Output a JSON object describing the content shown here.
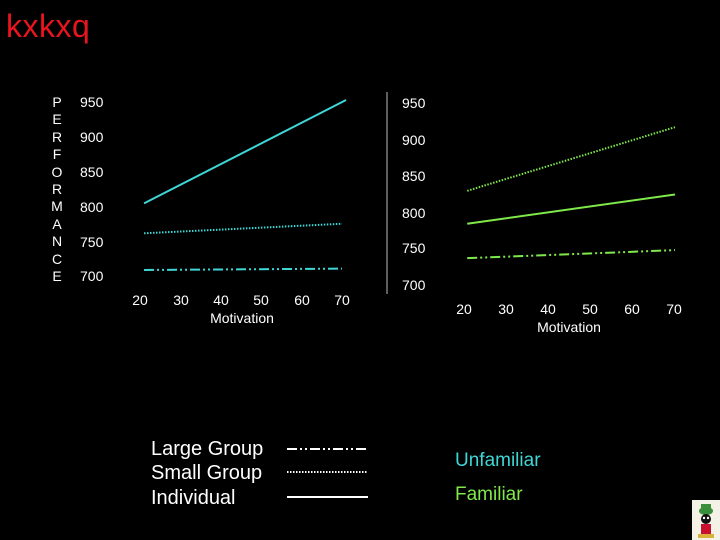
{
  "title": "kxkxq",
  "colors": {
    "title": "#e8141e",
    "unfamiliar": "#3fd6d6",
    "familiar": "#7fe84a",
    "text": "#ffffff"
  },
  "ylabel_letters": [
    "P",
    "E",
    "R",
    "F",
    "O",
    "R",
    "M",
    "A",
    "N",
    "C",
    "E"
  ],
  "chart_data": [
    {
      "type": "line",
      "name": "left-chart",
      "condition": "Unfamiliar",
      "color": "#3fd6d6",
      "x": [
        20,
        30,
        40,
        50,
        60,
        70
      ],
      "xticks": [
        "20",
        "30",
        "40",
        "50",
        "60",
        "70"
      ],
      "yticks": [
        "950",
        "900",
        "850",
        "800",
        "750",
        "700"
      ],
      "ytick_values": [
        950,
        900,
        850,
        800,
        750,
        700
      ],
      "xlabel": "Motivation",
      "ylabel": "PERFORMANCE",
      "xlim": [
        20,
        70
      ],
      "ylim": [
        700,
        950
      ],
      "series": [
        {
          "name": "Large Group",
          "style": "dashdot",
          "points": [
            [
              21,
              700
            ],
            [
              70,
              702
            ]
          ]
        },
        {
          "name": "Small Group",
          "style": "dotted",
          "points": [
            [
              21,
              754
            ],
            [
              70,
              768
            ]
          ]
        },
        {
          "name": "Individual",
          "style": "solid",
          "points": [
            [
              21,
              798
            ],
            [
              71,
              950
            ]
          ]
        }
      ]
    },
    {
      "type": "line",
      "name": "right-chart",
      "condition": "Familiar",
      "color": "#7fe84a",
      "x": [
        20,
        30,
        40,
        50,
        60,
        70
      ],
      "xticks": [
        "20",
        "30",
        "40",
        "50",
        "60",
        "70"
      ],
      "yticks": [
        "950",
        "900",
        "850",
        "800",
        "750",
        "700"
      ],
      "ytick_values": [
        950,
        900,
        850,
        800,
        750,
        700
      ],
      "xlabel": "Motivation",
      "ylabel": "",
      "xlim": [
        20,
        70
      ],
      "ylim": [
        700,
        950
      ],
      "series": [
        {
          "name": "Large Group",
          "style": "dashdot",
          "points": [
            [
              21,
              738
            ],
            [
              70,
              749
            ]
          ]
        },
        {
          "name": "Small Group",
          "style": "dotted",
          "points": [
            [
              21,
              830
            ],
            [
              70,
              917
            ]
          ]
        },
        {
          "name": "Individual",
          "style": "solid",
          "points": [
            [
              21,
              785
            ],
            [
              70,
              825
            ]
          ]
        }
      ]
    }
  ],
  "legend": {
    "items": [
      {
        "label": "Large Group",
        "style": "dashdot"
      },
      {
        "label": "Small Group",
        "style": "dotted"
      },
      {
        "label": "Individual",
        "style": "solid"
      }
    ],
    "conditions": [
      {
        "label": "Unfamiliar",
        "color": "#3fd6d6"
      },
      {
        "label": "Familiar",
        "color": "#7fe84a"
      }
    ]
  },
  "logo_icon": "cartoon-character-icon"
}
